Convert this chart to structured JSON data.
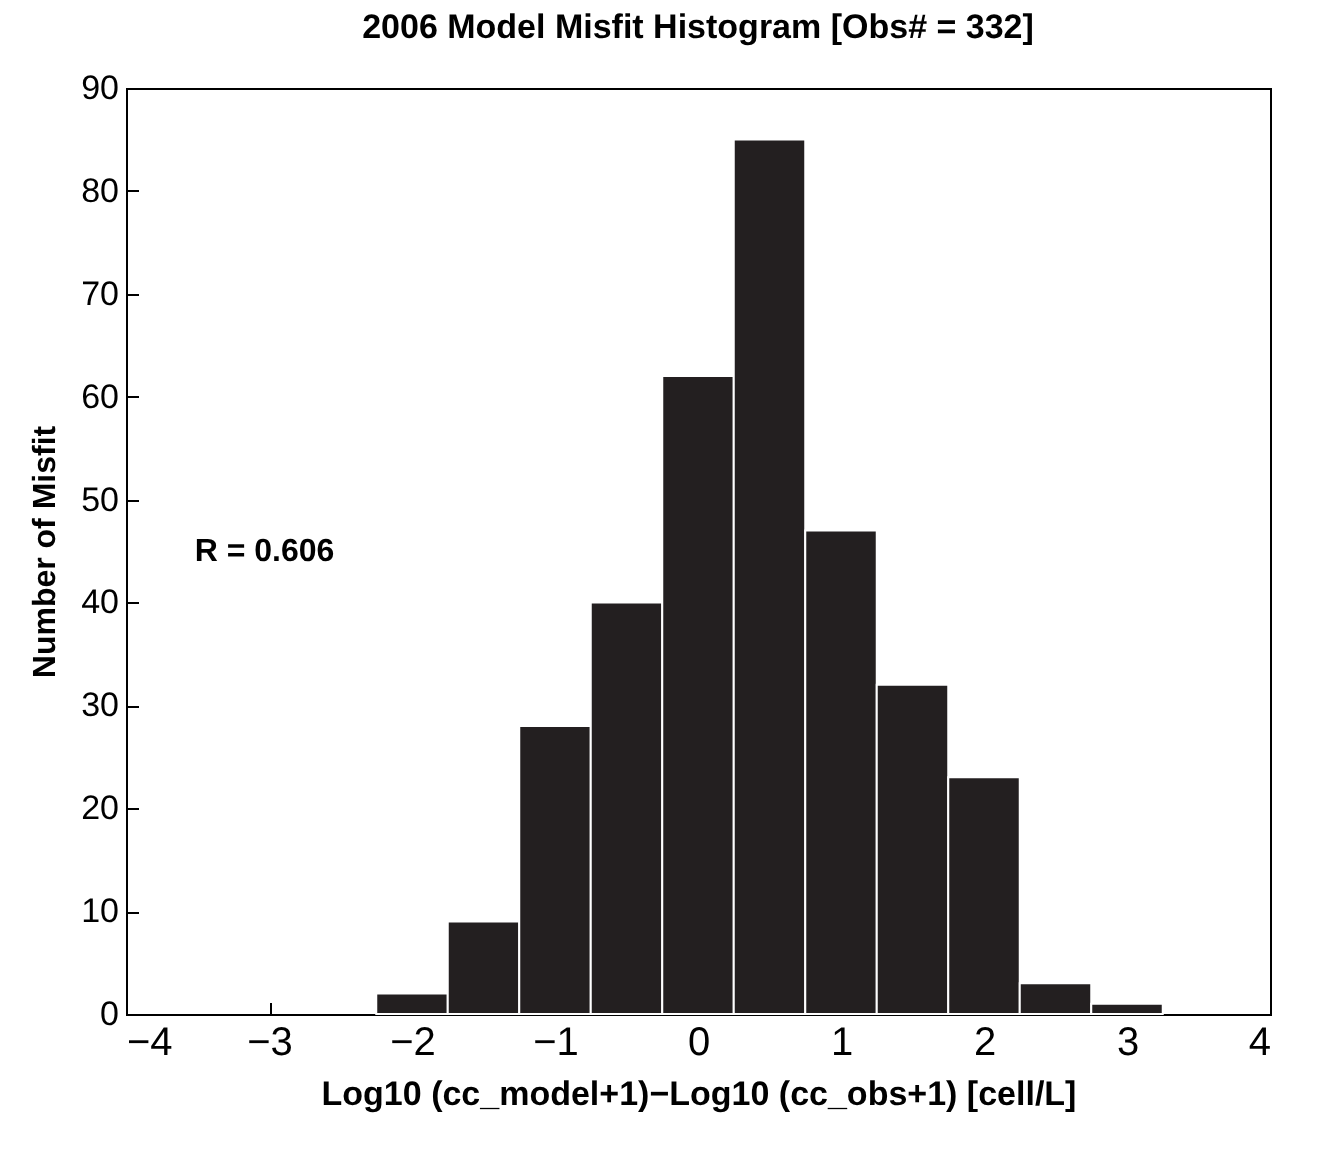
{
  "chart_data": {
    "type": "histogram",
    "title": "2006 Model Misfit Histogram [Obs# = 332]",
    "xlabel": "Log10 (cc_model+1)−Log10 (cc_obs+1) [cell/L]",
    "ylabel": "Number of Misfit",
    "bins": [
      -2.25,
      -1.75,
      -1.25,
      -0.75,
      -0.25,
      0.25,
      0.75,
      1.25,
      1.75,
      2.25,
      2.75,
      3.25
    ],
    "values": [
      2,
      9,
      28,
      40,
      62,
      85,
      47,
      32,
      23,
      3,
      1
    ],
    "color": "#231f20",
    "xlim": [
      -4,
      4
    ],
    "xticks": [
      -4,
      -3,
      -2,
      -1,
      0,
      1,
      2,
      3,
      4
    ],
    "ylim": [
      0,
      90
    ],
    "yticks": [
      0,
      10,
      20,
      30,
      40,
      50,
      60,
      70,
      80,
      90
    ],
    "grid": false,
    "annotations": [
      "R = 0.606"
    ]
  }
}
